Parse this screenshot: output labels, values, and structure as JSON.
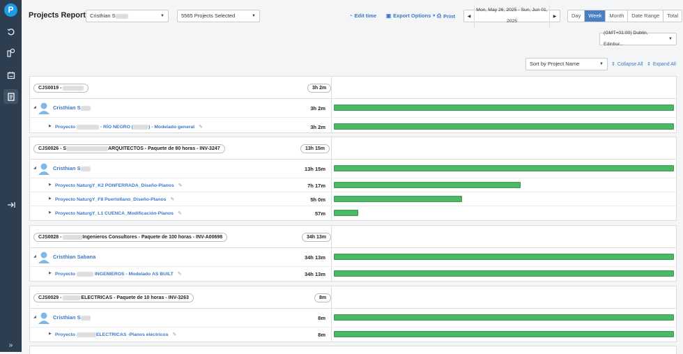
{
  "app": {
    "logo_letter": "P"
  },
  "header": {
    "title": "Projects Report",
    "user_select": "Cristhian S",
    "projects_select": "5565 Projects Selected",
    "edit_time": "Edit time",
    "export_options": "Export Options",
    "print": "Print",
    "date_range": "Mon, May 26, 2025 - Sun, Jun 01, 2025",
    "view_tabs": [
      "Day",
      "Week",
      "Month",
      "Date Range",
      "Total"
    ],
    "active_tab": "Week",
    "timezone": "(GMT+01:00) Dublin, Edinbur...",
    "sort": "Sort by Project Name",
    "collapse_all": "Collapse All",
    "expand_all": "Expand All"
  },
  "groups": [
    {
      "client": "CJS0019 - ",
      "total": "3h 2m",
      "user": "Cristhian S",
      "user_hours": "3h 2m",
      "user_fraction": 1.0,
      "projects": [
        {
          "label_a": "Proyecto ",
          "label_b": " - RÍO NEGRO (",
          "label_c": ") - Modelado general",
          "hours": "3h 2m",
          "fraction": 1.0
        }
      ]
    },
    {
      "client": "CJS0026 - S",
      "client_tail": "ARQUITECTOS - Paquete de 80 horas - INV-3247",
      "total": "13h 15m",
      "user": "Cristhian S",
      "user_hours": "13h 15m",
      "user_fraction": 1.0,
      "projects": [
        {
          "label": "Proyecto NaturgY_K2 PONFERRADA_Diseño-Planos",
          "hours": "7h 17m",
          "fraction": 0.55
        },
        {
          "label": "Proyecto NaturgY_F8 Puertollano_Diseño-Planos",
          "hours": "5h 0m",
          "fraction": 0.377
        },
        {
          "label": "Proyecto NaturgY_L1 CUENCA_Modificación-Planos",
          "hours": "57m",
          "fraction": 0.072
        }
      ]
    },
    {
      "client": "CJS0028 - ",
      "client_tail": "Ingenieros Consultores - Paquete de 100 horas - INV-A00698",
      "total": "34h 13m",
      "user": "Cristhian Sabana",
      "user_hours": "34h 13m",
      "user_fraction": 1.0,
      "projects": [
        {
          "label_a": "Proyecto ",
          "label_c": " INGENIEROS - Modelado AS BUILT",
          "hours": "34h 13m",
          "fraction": 1.0
        }
      ]
    },
    {
      "client": "CJS0029 - ",
      "client_tail": "ELECTRICAS - Paquete de 10 horas - INV-3263",
      "total": "8m",
      "user": "Cristhian S",
      "user_hours": "8m",
      "user_fraction": 1.0,
      "projects": [
        {
          "label_a": "Proyecto ",
          "label_c": "ELECTRICAS -Planos eléctricos",
          "hours": "8m",
          "fraction": 1.0
        }
      ]
    }
  ],
  "colors": {
    "bar": "#4cb866",
    "link": "#3b78c8",
    "sidebar": "#2d3e50",
    "accent": "#4a7fc4"
  }
}
